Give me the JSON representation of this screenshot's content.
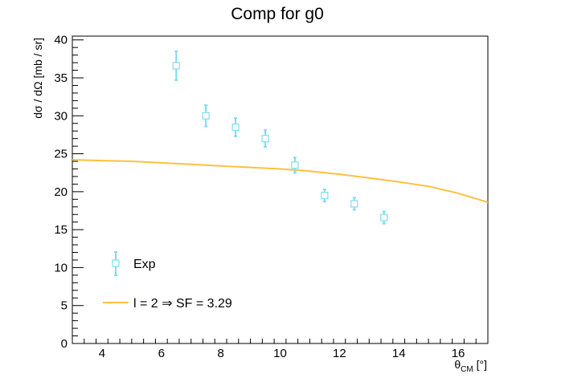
{
  "chart_data": {
    "type": "scatter",
    "title": "Comp for g0",
    "xlabel": {
      "main": "θ",
      "sub": "CM",
      "unit": " [°]"
    },
    "ylabel": "dσ / dΩ [mb / sr]",
    "xlim": [
      3,
      17
    ],
    "ylim": [
      0,
      40.5
    ],
    "x_ticks": [
      4,
      6,
      8,
      10,
      12,
      14,
      16
    ],
    "y_ticks": [
      0,
      5,
      10,
      15,
      20,
      25,
      30,
      35,
      40
    ],
    "grid": false,
    "legend_position": "bottom-left",
    "series": [
      {
        "name": "Exp",
        "kind": "points-with-errors",
        "color": "#7fdcf0",
        "x": [
          6.5,
          7.5,
          8.5,
          9.5,
          10.5,
          11.5,
          12.5,
          13.5
        ],
        "y": [
          36.6,
          30.0,
          28.5,
          27.0,
          23.5,
          19.5,
          18.4,
          16.6
        ],
        "yerr": [
          1.9,
          1.4,
          1.2,
          1.1,
          1.0,
          0.8,
          0.8,
          0.8
        ]
      },
      {
        "name": "l = 2 ⇒ SF = 3.29",
        "kind": "curve",
        "color": "#ffc040",
        "x": [
          3,
          4,
          5,
          6,
          7,
          8,
          9,
          10,
          11,
          12,
          13,
          14,
          15,
          16,
          17
        ],
        "y": [
          24.2,
          24.1,
          24.0,
          23.8,
          23.6,
          23.4,
          23.2,
          23.0,
          22.7,
          22.3,
          21.8,
          21.3,
          20.7,
          19.8,
          18.6
        ]
      }
    ]
  }
}
